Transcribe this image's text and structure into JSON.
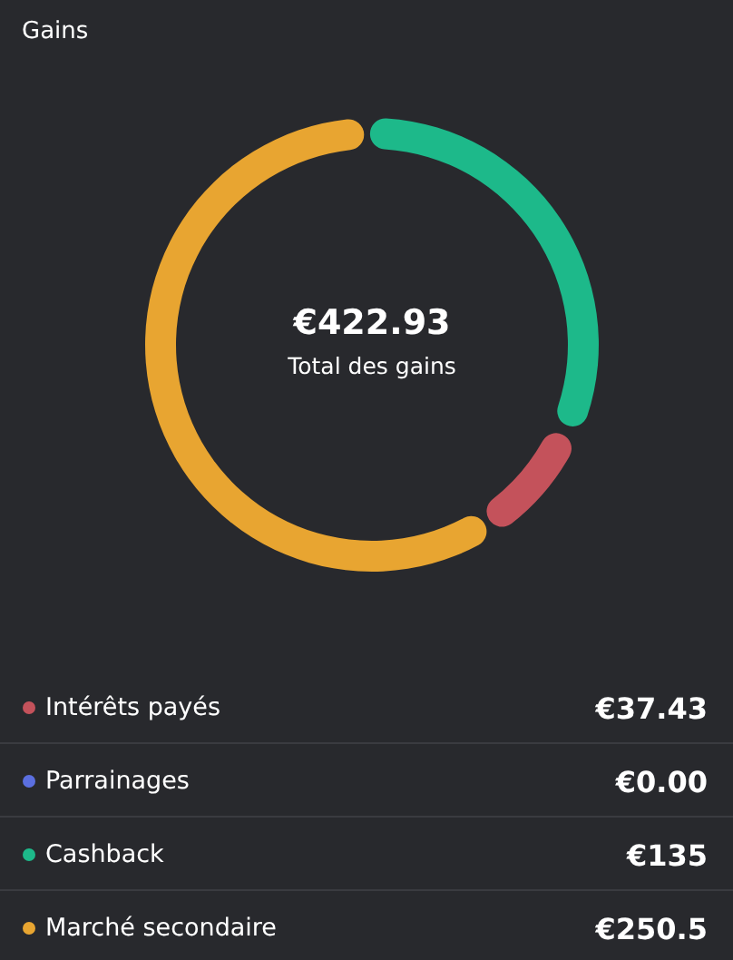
{
  "chart_data": {
    "type": "donut",
    "title": "Gains",
    "categories": [
      "Intérêts payés",
      "Parrainages",
      "Cashback",
      "Marché secondaire"
    ],
    "values": [
      37.43,
      0,
      135,
      250.5
    ],
    "colors": [
      "#c4525b",
      "#5b6fe0",
      "#1db98a",
      "#e8a531"
    ],
    "value_labels": [
      "€37.43",
      "€0.00",
      "€135",
      "€250.5"
    ],
    "annotations": [
      "€422.93",
      "Total des gains"
    ],
    "legend": "bottom"
  }
}
